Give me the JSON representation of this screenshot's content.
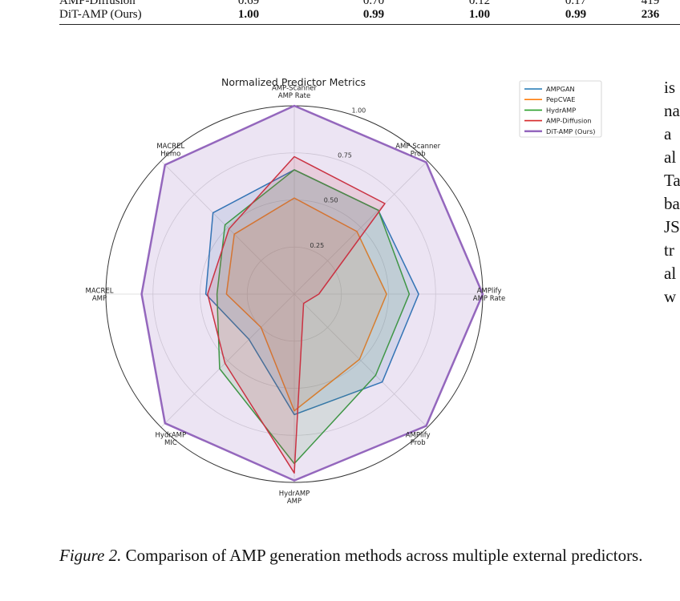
{
  "table_fragment": {
    "prev_row": {
      "method": "AMP-Diffusion",
      "values": [
        "0.69",
        "0.70",
        "0.12",
        "0.17",
        "419"
      ]
    },
    "last_row": {
      "method": "DiT-AMP (Ours)",
      "values": [
        "1.00",
        "0.99",
        "1.00",
        "0.99",
        "236"
      ]
    }
  },
  "side_text": [
    "is",
    "na",
    "a",
    "al",
    "Ta",
    "ba",
    "JS",
    "tr",
    "al",
    "w"
  ],
  "caption": {
    "label": "Figure 2.",
    "text": "Comparison of AMP generation methods across multiple external predictors."
  },
  "chart_data": {
    "type": "radar",
    "title": "Normalized Predictor Metrics",
    "axes": [
      "AMP-Scanner\nAMP Rate",
      "AMP-Scanner\nProb",
      "AMPlify\nAMP Rate",
      "AMPlify\nProb",
      "HydrAMP\nAMP",
      "HydrAMP\nMIC",
      "MACREL\nAMP",
      "MACREL\nHemo"
    ],
    "r_ticks": [
      "0.25",
      "0.50",
      "0.75",
      "1.00"
    ],
    "r_range": [
      0,
      1
    ],
    "grid": true,
    "legend_position": "top-right",
    "series": [
      {
        "name": "AMPGAN",
        "color": "#1f77b4",
        "values": [
          0.66,
          0.63,
          0.66,
          0.66,
          0.64,
          0.34,
          0.47,
          0.61
        ]
      },
      {
        "name": "PepCVAE",
        "color": "#ff7f0e",
        "values": [
          0.51,
          0.47,
          0.49,
          0.49,
          0.62,
          0.25,
          0.36,
          0.45
        ]
      },
      {
        "name": "HydrAMP",
        "color": "#2ca02c",
        "values": [
          0.66,
          0.63,
          0.61,
          0.61,
          0.9,
          0.56,
          0.41,
          0.52
        ]
      },
      {
        "name": "AMP-Diffusion",
        "color": "#d62728",
        "values": [
          0.73,
          0.68,
          0.13,
          0.07,
          0.95,
          0.52,
          0.46,
          0.49
        ]
      },
      {
        "name": "DiT-AMP (Ours)",
        "color": "#9467bd",
        "values": [
          1.0,
          0.99,
          1.0,
          0.99,
          0.99,
          0.97,
          0.81,
          0.97
        ]
      }
    ]
  }
}
